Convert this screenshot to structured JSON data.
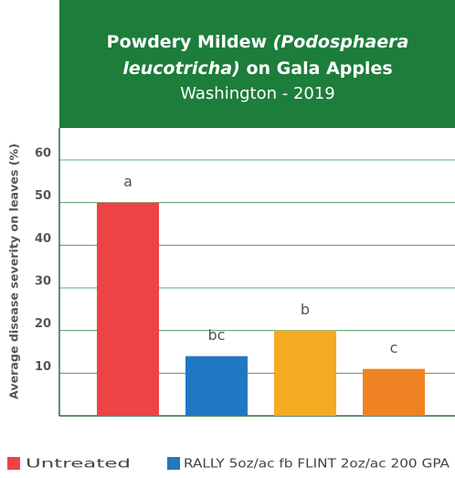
{
  "chart_data": {
    "type": "bar",
    "title": [
      "Powdery Mildew",
      "(Podosphaera",
      "leucotricha)",
      "on Gala Apples"
    ],
    "subtitle": "Washington - 2019",
    "y_label": "Average disease severity on leaves (%)",
    "categories": [
      "Untreated",
      "RALLY 5oz/ac fb FLINT 2oz/ac 200 GPA",
      null,
      null
    ],
    "values": [
      50,
      14,
      20,
      11
    ],
    "colors": [
      "#ee4346",
      "#1f78c1",
      "#f4aa21",
      "#ef8222"
    ],
    "annotations": [
      "a",
      "bc",
      "b",
      "c"
    ],
    "ylim": [
      0,
      67.5
    ],
    "yticks": [
      10,
      20,
      30,
      40,
      50,
      60
    ],
    "grid": true
  }
}
